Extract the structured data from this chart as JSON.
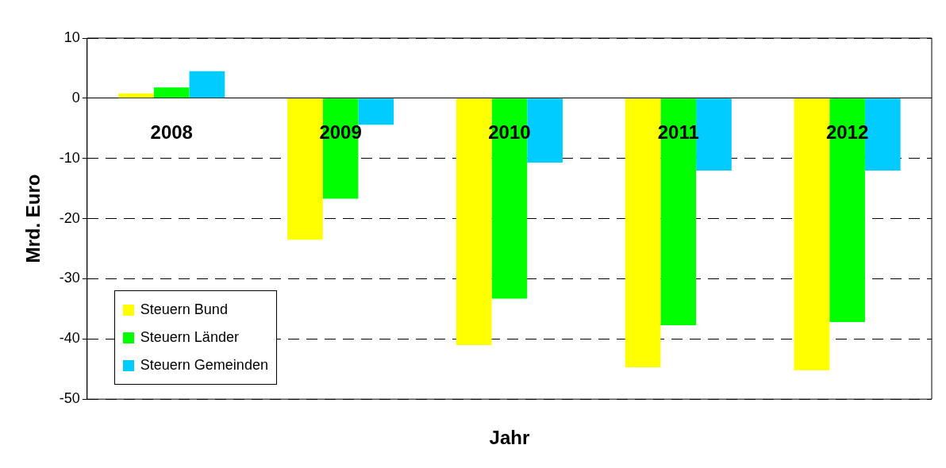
{
  "chart_data": {
    "type": "bar",
    "xlabel": "Jahr",
    "ylabel": "Mrd. Euro",
    "categories": [
      "2008",
      "2009",
      "2010",
      "2011",
      "2012"
    ],
    "series": [
      {
        "name": "Steuern Bund",
        "color": "#ffff00",
        "values": [
          0.8,
          -23.5,
          -41.0,
          -44.7,
          -45.2
        ]
      },
      {
        "name": "Steuern Länder",
        "color": "#00ff00",
        "values": [
          1.8,
          -16.7,
          -33.3,
          -37.7,
          -37.2
        ]
      },
      {
        "name": "Steuern Gemeinden",
        "color": "#00ccff",
        "values": [
          4.5,
          -4.4,
          -10.7,
          -12.0,
          -12.0
        ]
      }
    ],
    "ylim": [
      -50,
      10
    ],
    "yticks": [
      -50,
      -40,
      -30,
      -20,
      -10,
      0,
      10
    ],
    "grid": "y",
    "legend": "bottom left"
  }
}
